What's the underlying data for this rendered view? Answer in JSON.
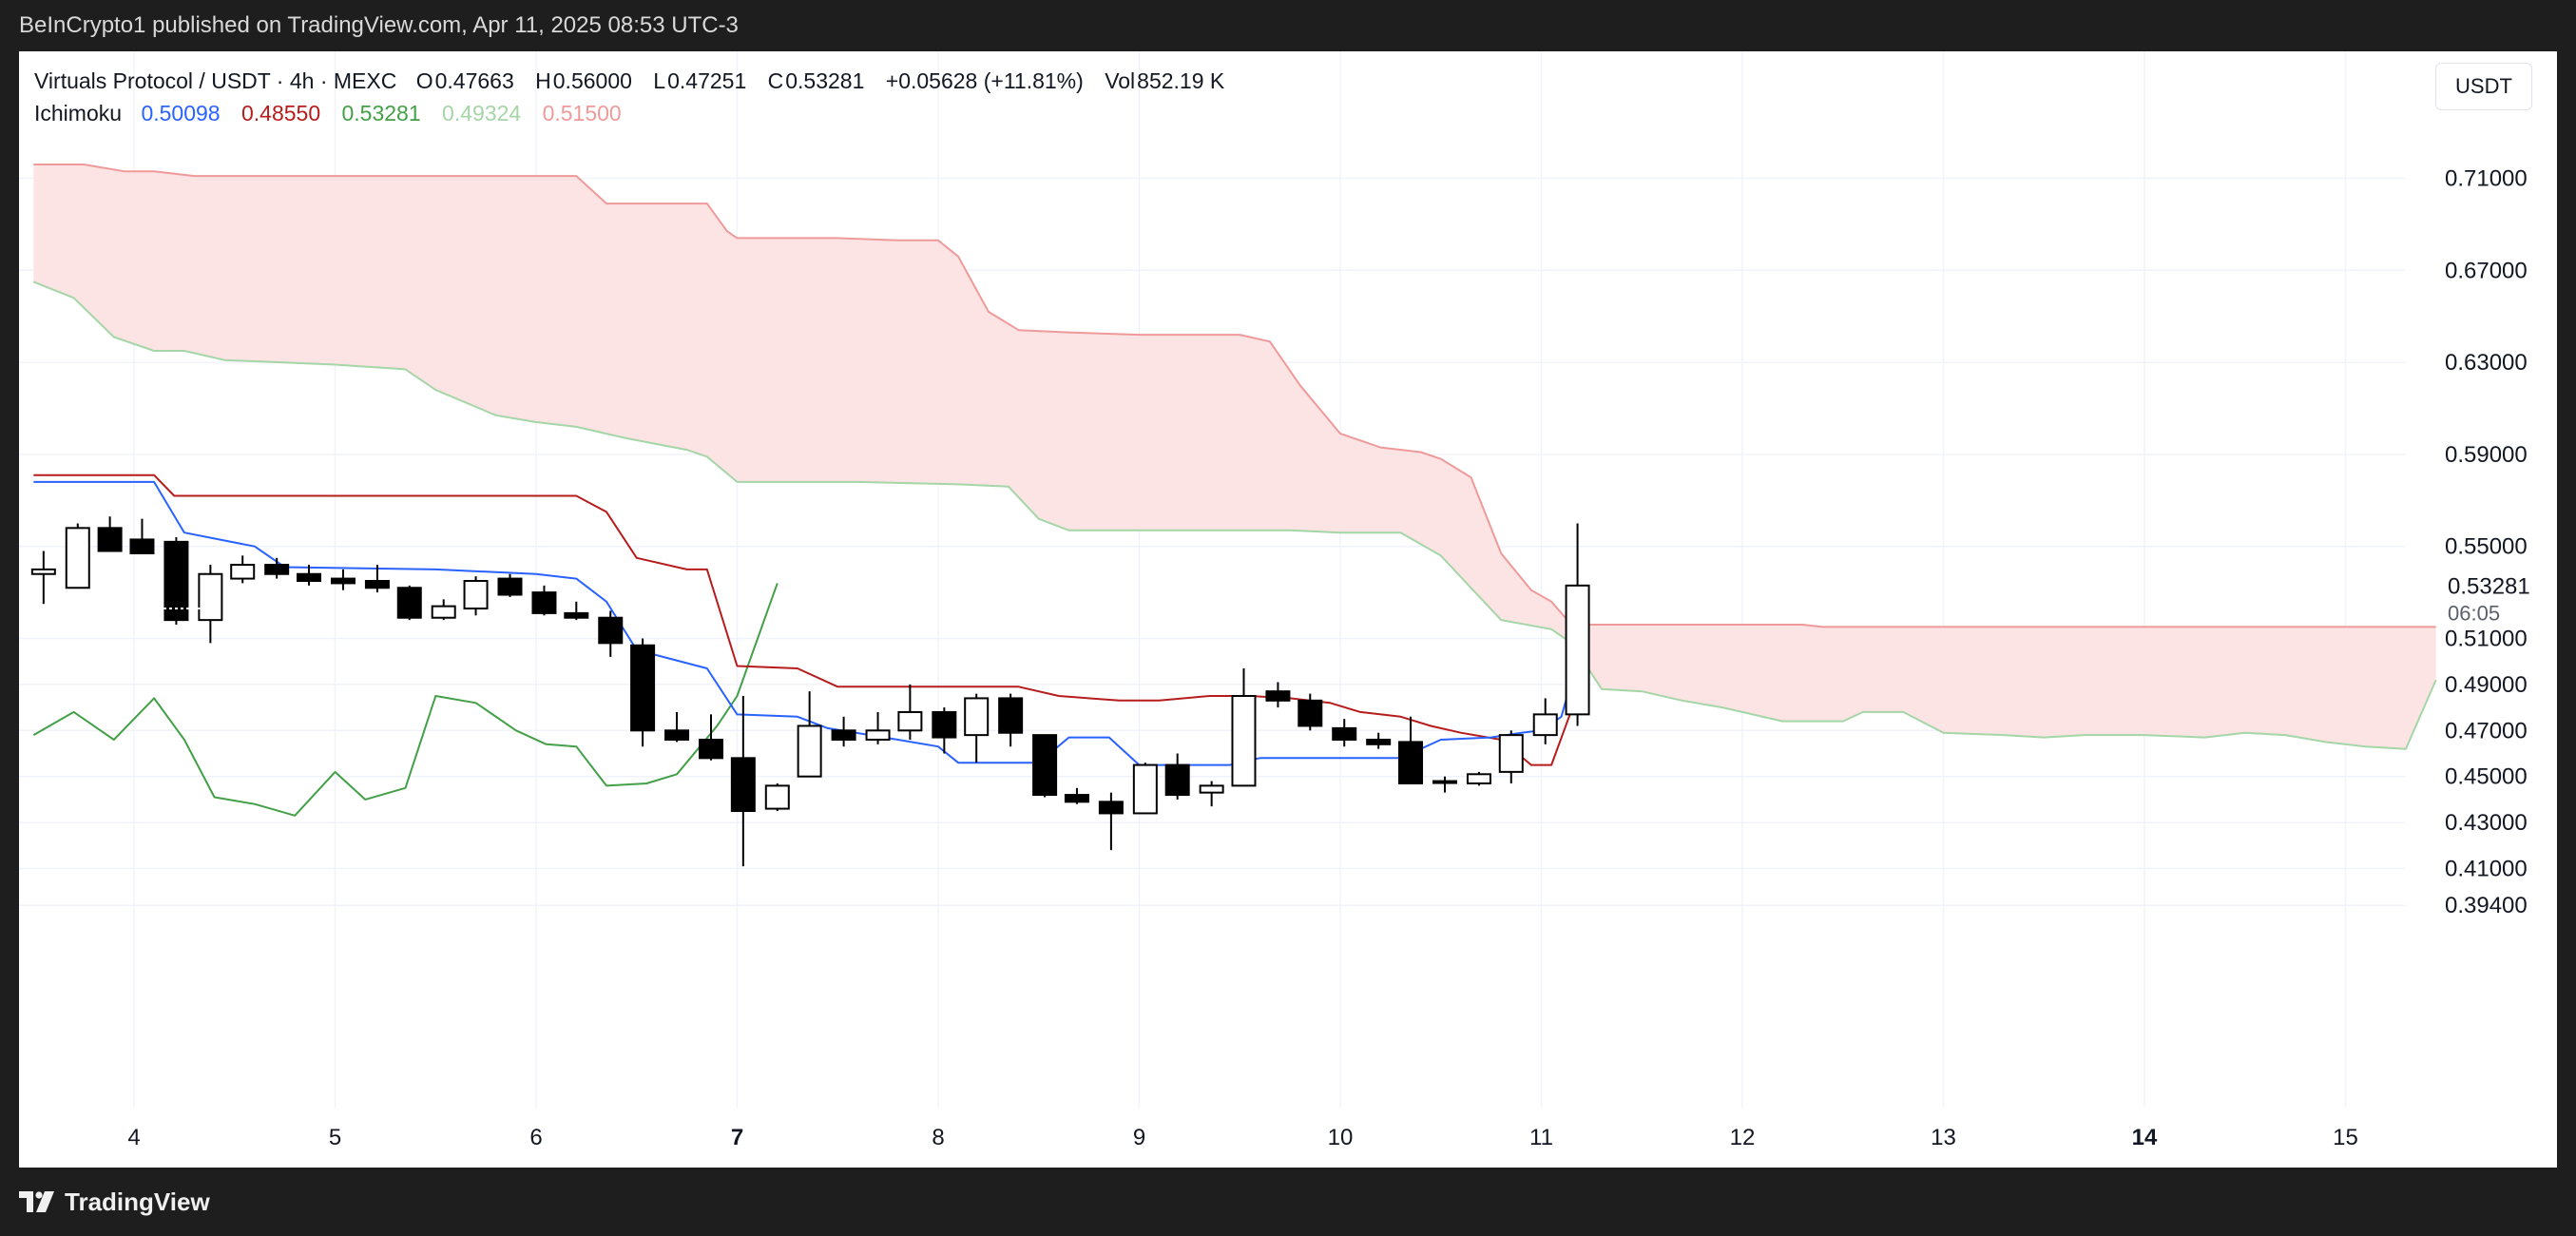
{
  "header": {
    "publisher_text": "BeInCrypto1 published on TradingView.com, Apr 11, 2025 08:53 UTC-3"
  },
  "footer": {
    "brand": "TradingView"
  },
  "legend": {
    "symbol": "Virtuals Protocol / USDT · 4h · MEXC",
    "open_label": "O",
    "open": "0.47663",
    "high_label": "H",
    "high": "0.56000",
    "low_label": "L",
    "low": "0.47251",
    "close_label": "C",
    "close": "0.53281",
    "change": "+0.05628 (+11.81%)",
    "vol_label": "Vol",
    "volume": "852.19 K",
    "indicator_name": "Ichimoku",
    "ichimoku_values": [
      {
        "value": "0.50098",
        "color": "#2962ff"
      },
      {
        "value": "0.48550",
        "color": "#b71c1c"
      },
      {
        "value": "0.53281",
        "color": "#43a047"
      },
      {
        "value": "0.49324",
        "color": "#a5d6a7"
      },
      {
        "value": "0.51500",
        "color": "#ef9a9a"
      }
    ]
  },
  "currency_button": "USDT",
  "price_tag": {
    "price": "0.53281",
    "countdown": "06:05"
  },
  "chart_data": {
    "type": "candlestick",
    "x_tick_labels": [
      {
        "label": "4",
        "x": 4,
        "bold": false
      },
      {
        "label": "5",
        "x": 5,
        "bold": false
      },
      {
        "label": "6",
        "x": 6,
        "bold": false
      },
      {
        "label": "7",
        "x": 7,
        "bold": true
      },
      {
        "label": "8",
        "x": 8,
        "bold": false
      },
      {
        "label": "9",
        "x": 9,
        "bold": false
      },
      {
        "label": "10",
        "x": 10,
        "bold": false
      },
      {
        "label": "11",
        "x": 11,
        "bold": false
      },
      {
        "label": "12",
        "x": 12,
        "bold": false
      },
      {
        "label": "13",
        "x": 13,
        "bold": false
      },
      {
        "label": "14",
        "x": 14,
        "bold": true
      },
      {
        "label": "15",
        "x": 15,
        "bold": false
      }
    ],
    "y_tick_labels": [
      "0.71000",
      "0.67000",
      "0.63000",
      "0.59000",
      "0.55000",
      "0.51000",
      "0.49000",
      "0.47000",
      "0.45000",
      "0.43000",
      "0.41000",
      "0.39400"
    ],
    "y_ticks": [
      0.71,
      0.67,
      0.63,
      0.59,
      0.55,
      0.51,
      0.49,
      0.47,
      0.45,
      0.43,
      0.41,
      0.394
    ],
    "colors": {
      "tenkan": "#2962ff",
      "kijun": "#b71c1c",
      "chikou": "#43a047",
      "span_a": "#a5d6a7",
      "span_b": "#ef9a9a",
      "cloud_bearish": "#fde4e4",
      "candle_up_fill": "#ffffff",
      "candle_down_fill": "#000000",
      "candle_border": "#000000"
    },
    "candles": [
      {
        "t": 3.55,
        "o": 0.538,
        "h": 0.548,
        "l": 0.525,
        "c": 0.54
      },
      {
        "t": 3.72,
        "o": 0.532,
        "h": 0.56,
        "l": 0.532,
        "c": 0.558
      },
      {
        "t": 3.88,
        "o": 0.558,
        "h": 0.563,
        "l": 0.548,
        "c": 0.548
      },
      {
        "t": 4.04,
        "o": 0.553,
        "h": 0.562,
        "l": 0.547,
        "c": 0.547
      },
      {
        "t": 4.21,
        "o": 0.552,
        "h": 0.554,
        "l": 0.516,
        "c": 0.518
      },
      {
        "t": 4.38,
        "o": 0.518,
        "h": 0.542,
        "l": 0.508,
        "c": 0.538
      },
      {
        "t": 4.54,
        "o": 0.536,
        "h": 0.546,
        "l": 0.534,
        "c": 0.542
      },
      {
        "t": 4.71,
        "o": 0.542,
        "h": 0.545,
        "l": 0.536,
        "c": 0.538
      },
      {
        "t": 4.87,
        "o": 0.538,
        "h": 0.542,
        "l": 0.533,
        "c": 0.535
      },
      {
        "t": 5.04,
        "o": 0.536,
        "h": 0.54,
        "l": 0.531,
        "c": 0.534
      },
      {
        "t": 5.21,
        "o": 0.535,
        "h": 0.542,
        "l": 0.53,
        "c": 0.532
      },
      {
        "t": 5.37,
        "o": 0.532,
        "h": 0.533,
        "l": 0.518,
        "c": 0.519
      },
      {
        "t": 5.54,
        "o": 0.519,
        "h": 0.527,
        "l": 0.518,
        "c": 0.524
      },
      {
        "t": 5.7,
        "o": 0.523,
        "h": 0.537,
        "l": 0.52,
        "c": 0.535
      },
      {
        "t": 5.87,
        "o": 0.536,
        "h": 0.538,
        "l": 0.528,
        "c": 0.529
      },
      {
        "t": 6.04,
        "o": 0.53,
        "h": 0.533,
        "l": 0.52,
        "c": 0.521
      },
      {
        "t": 6.2,
        "o": 0.521,
        "h": 0.526,
        "l": 0.518,
        "c": 0.519
      },
      {
        "t": 6.37,
        "o": 0.519,
        "h": 0.522,
        "l": 0.502,
        "c": 0.508
      },
      {
        "t": 6.53,
        "o": 0.507,
        "h": 0.51,
        "l": 0.463,
        "c": 0.47
      },
      {
        "t": 6.7,
        "o": 0.47,
        "h": 0.478,
        "l": 0.465,
        "c": 0.466
      },
      {
        "t": 6.87,
        "o": 0.466,
        "h": 0.477,
        "l": 0.457,
        "c": 0.458
      },
      {
        "t": 7.03,
        "o": 0.458,
        "h": 0.485,
        "l": 0.411,
        "c": 0.435
      },
      {
        "t": 7.2,
        "o": 0.436,
        "h": 0.447,
        "l": 0.435,
        "c": 0.446
      },
      {
        "t": 7.36,
        "o": 0.45,
        "h": 0.487,
        "l": 0.45,
        "c": 0.472
      },
      {
        "t": 7.53,
        "o": 0.47,
        "h": 0.476,
        "l": 0.463,
        "c": 0.466
      },
      {
        "t": 7.7,
        "o": 0.466,
        "h": 0.478,
        "l": 0.464,
        "c": 0.47
      },
      {
        "t": 7.86,
        "o": 0.47,
        "h": 0.49,
        "l": 0.466,
        "c": 0.478
      },
      {
        "t": 8.03,
        "o": 0.478,
        "h": 0.48,
        "l": 0.46,
        "c": 0.467
      },
      {
        "t": 8.19,
        "o": 0.468,
        "h": 0.486,
        "l": 0.456,
        "c": 0.484
      },
      {
        "t": 8.36,
        "o": 0.484,
        "h": 0.486,
        "l": 0.463,
        "c": 0.469
      },
      {
        "t": 8.53,
        "o": 0.468,
        "h": 0.468,
        "l": 0.441,
        "c": 0.442
      },
      {
        "t": 8.69,
        "o": 0.442,
        "h": 0.445,
        "l": 0.438,
        "c": 0.439
      },
      {
        "t": 8.86,
        "o": 0.439,
        "h": 0.443,
        "l": 0.418,
        "c": 0.434
      },
      {
        "t": 9.03,
        "o": 0.434,
        "h": 0.456,
        "l": 0.434,
        "c": 0.455
      },
      {
        "t": 9.19,
        "o": 0.455,
        "h": 0.46,
        "l": 0.44,
        "c": 0.442
      },
      {
        "t": 9.36,
        "o": 0.443,
        "h": 0.448,
        "l": 0.437,
        "c": 0.446
      },
      {
        "t": 9.52,
        "o": 0.446,
        "h": 0.497,
        "l": 0.446,
        "c": 0.485
      },
      {
        "t": 9.69,
        "o": 0.487,
        "h": 0.491,
        "l": 0.48,
        "c": 0.483
      },
      {
        "t": 9.85,
        "o": 0.483,
        "h": 0.486,
        "l": 0.47,
        "c": 0.472
      },
      {
        "t": 10.02,
        "o": 0.471,
        "h": 0.475,
        "l": 0.463,
        "c": 0.466
      },
      {
        "t": 10.19,
        "o": 0.466,
        "h": 0.469,
        "l": 0.462,
        "c": 0.464
      },
      {
        "t": 10.35,
        "o": 0.465,
        "h": 0.476,
        "l": 0.447,
        "c": 0.447
      },
      {
        "t": 10.52,
        "o": 0.448,
        "h": 0.45,
        "l": 0.443,
        "c": 0.448
      },
      {
        "t": 10.69,
        "o": 0.447,
        "h": 0.452,
        "l": 0.446,
        "c": 0.451
      },
      {
        "t": 10.85,
        "o": 0.452,
        "h": 0.47,
        "l": 0.447,
        "c": 0.468
      },
      {
        "t": 11.02,
        "o": 0.468,
        "h": 0.484,
        "l": 0.464,
        "c": 0.477
      },
      {
        "t": 11.18,
        "o": 0.477,
        "h": 0.56,
        "l": 0.472,
        "c": 0.533
      }
    ],
    "tenkan_sen": [
      [
        3.5,
        0.578
      ],
      [
        4.1,
        0.578
      ],
      [
        4.25,
        0.556
      ],
      [
        4.6,
        0.55
      ],
      [
        4.75,
        0.541
      ],
      [
        5.5,
        0.54
      ],
      [
        5.75,
        0.539
      ],
      [
        6.0,
        0.538
      ],
      [
        6.2,
        0.536
      ],
      [
        6.35,
        0.526
      ],
      [
        6.5,
        0.505
      ],
      [
        6.85,
        0.497
      ],
      [
        7.0,
        0.477
      ],
      [
        7.3,
        0.476
      ],
      [
        7.45,
        0.471
      ],
      [
        7.8,
        0.466
      ],
      [
        8.0,
        0.463
      ],
      [
        8.1,
        0.456
      ],
      [
        8.5,
        0.456
      ],
      [
        8.65,
        0.467
      ],
      [
        8.85,
        0.467
      ],
      [
        9.0,
        0.455
      ],
      [
        9.45,
        0.455
      ],
      [
        9.6,
        0.458
      ],
      [
        10.3,
        0.458
      ],
      [
        10.5,
        0.466
      ],
      [
        10.75,
        0.467
      ],
      [
        10.9,
        0.469
      ],
      [
        11.0,
        0.47
      ],
      [
        11.1,
        0.476
      ],
      [
        11.18,
        0.501
      ]
    ],
    "kijun_sen": [
      [
        3.5,
        0.581
      ],
      [
        4.1,
        0.581
      ],
      [
        4.2,
        0.572
      ],
      [
        5.3,
        0.572
      ],
      [
        6.2,
        0.572
      ],
      [
        6.35,
        0.565
      ],
      [
        6.5,
        0.545
      ],
      [
        6.75,
        0.54
      ],
      [
        6.85,
        0.54
      ],
      [
        7.0,
        0.498
      ],
      [
        7.3,
        0.497
      ],
      [
        7.5,
        0.489
      ],
      [
        8.0,
        0.489
      ],
      [
        8.4,
        0.489
      ],
      [
        8.6,
        0.485
      ],
      [
        8.9,
        0.483
      ],
      [
        9.1,
        0.483
      ],
      [
        9.35,
        0.485
      ],
      [
        9.55,
        0.485
      ],
      [
        9.75,
        0.484
      ],
      [
        9.95,
        0.482
      ],
      [
        10.1,
        0.478
      ],
      [
        10.3,
        0.476
      ],
      [
        10.45,
        0.472
      ],
      [
        10.6,
        0.469
      ],
      [
        10.8,
        0.466
      ],
      [
        10.95,
        0.455
      ],
      [
        11.05,
        0.455
      ],
      [
        11.18,
        0.486
      ]
    ],
    "chikou_span": [
      [
        3.5,
        0.468
      ],
      [
        3.7,
        0.478
      ],
      [
        3.9,
        0.466
      ],
      [
        4.1,
        0.484
      ],
      [
        4.25,
        0.466
      ],
      [
        4.4,
        0.441
      ],
      [
        4.6,
        0.438
      ],
      [
        4.8,
        0.433
      ],
      [
        5.0,
        0.452
      ],
      [
        5.15,
        0.44
      ],
      [
        5.35,
        0.445
      ],
      [
        5.5,
        0.485
      ],
      [
        5.7,
        0.482
      ],
      [
        5.9,
        0.47
      ],
      [
        6.05,
        0.464
      ],
      [
        6.2,
        0.463
      ],
      [
        6.35,
        0.446
      ],
      [
        6.55,
        0.447
      ],
      [
        6.7,
        0.451
      ],
      [
        6.9,
        0.472
      ],
      [
        7.0,
        0.485
      ],
      [
        7.2,
        0.534
      ]
    ],
    "senkou_span_a": [
      [
        3.5,
        0.665
      ],
      [
        3.7,
        0.658
      ],
      [
        3.9,
        0.641
      ],
      [
        4.1,
        0.635
      ],
      [
        4.25,
        0.635
      ],
      [
        4.45,
        0.631
      ],
      [
        5.0,
        0.629
      ],
      [
        5.35,
        0.627
      ],
      [
        5.5,
        0.618
      ],
      [
        5.8,
        0.607
      ],
      [
        6.0,
        0.604
      ],
      [
        6.2,
        0.602
      ],
      [
        6.45,
        0.597
      ],
      [
        6.75,
        0.592
      ],
      [
        6.85,
        0.589
      ],
      [
        7.0,
        0.578
      ],
      [
        7.6,
        0.578
      ],
      [
        8.1,
        0.577
      ],
      [
        8.35,
        0.576
      ],
      [
        8.5,
        0.562
      ],
      [
        8.65,
        0.557
      ],
      [
        8.85,
        0.557
      ],
      [
        9.35,
        0.557
      ],
      [
        9.55,
        0.557
      ],
      [
        9.75,
        0.557
      ],
      [
        10.0,
        0.556
      ],
      [
        10.3,
        0.556
      ],
      [
        10.5,
        0.546
      ],
      [
        10.65,
        0.532
      ],
      [
        10.8,
        0.518
      ],
      [
        11.05,
        0.514
      ],
      [
        11.15,
        0.508
      ],
      [
        11.3,
        0.488
      ],
      [
        11.5,
        0.487
      ],
      [
        11.7,
        0.483
      ],
      [
        11.9,
        0.48
      ],
      [
        12.0,
        0.478
      ],
      [
        12.2,
        0.474
      ],
      [
        12.5,
        0.474
      ],
      [
        12.6,
        0.478
      ],
      [
        12.8,
        0.478
      ],
      [
        13.0,
        0.469
      ],
      [
        13.3,
        0.468
      ],
      [
        13.5,
        0.467
      ],
      [
        13.7,
        0.468
      ],
      [
        14.0,
        0.468
      ],
      [
        14.3,
        0.467
      ],
      [
        14.5,
        0.469
      ],
      [
        14.7,
        0.468
      ],
      [
        14.9,
        0.465
      ],
      [
        15.1,
        0.463
      ],
      [
        15.3,
        0.462
      ],
      [
        15.45,
        0.492
      ]
    ],
    "senkou_span_b": [
      [
        3.5,
        0.716
      ],
      [
        3.75,
        0.716
      ],
      [
        3.95,
        0.713
      ],
      [
        4.1,
        0.713
      ],
      [
        4.3,
        0.711
      ],
      [
        5.35,
        0.711
      ],
      [
        6.0,
        0.711
      ],
      [
        6.2,
        0.711
      ],
      [
        6.35,
        0.699
      ],
      [
        6.7,
        0.699
      ],
      [
        6.85,
        0.699
      ],
      [
        6.95,
        0.687
      ],
      [
        7.0,
        0.684
      ],
      [
        7.5,
        0.684
      ],
      [
        7.8,
        0.683
      ],
      [
        8.0,
        0.683
      ],
      [
        8.1,
        0.676
      ],
      [
        8.25,
        0.652
      ],
      [
        8.4,
        0.644
      ],
      [
        8.65,
        0.643
      ],
      [
        9.0,
        0.642
      ],
      [
        9.5,
        0.642
      ],
      [
        9.65,
        0.639
      ],
      [
        9.8,
        0.62
      ],
      [
        10.0,
        0.599
      ],
      [
        10.2,
        0.593
      ],
      [
        10.4,
        0.591
      ],
      [
        10.5,
        0.588
      ],
      [
        10.65,
        0.58
      ],
      [
        10.8,
        0.547
      ],
      [
        10.95,
        0.531
      ],
      [
        11.05,
        0.526
      ],
      [
        11.15,
        0.516
      ],
      [
        12.0,
        0.516
      ],
      [
        12.3,
        0.516
      ],
      [
        12.4,
        0.515
      ],
      [
        13.0,
        0.515
      ],
      [
        15.45,
        0.515
      ]
    ]
  }
}
